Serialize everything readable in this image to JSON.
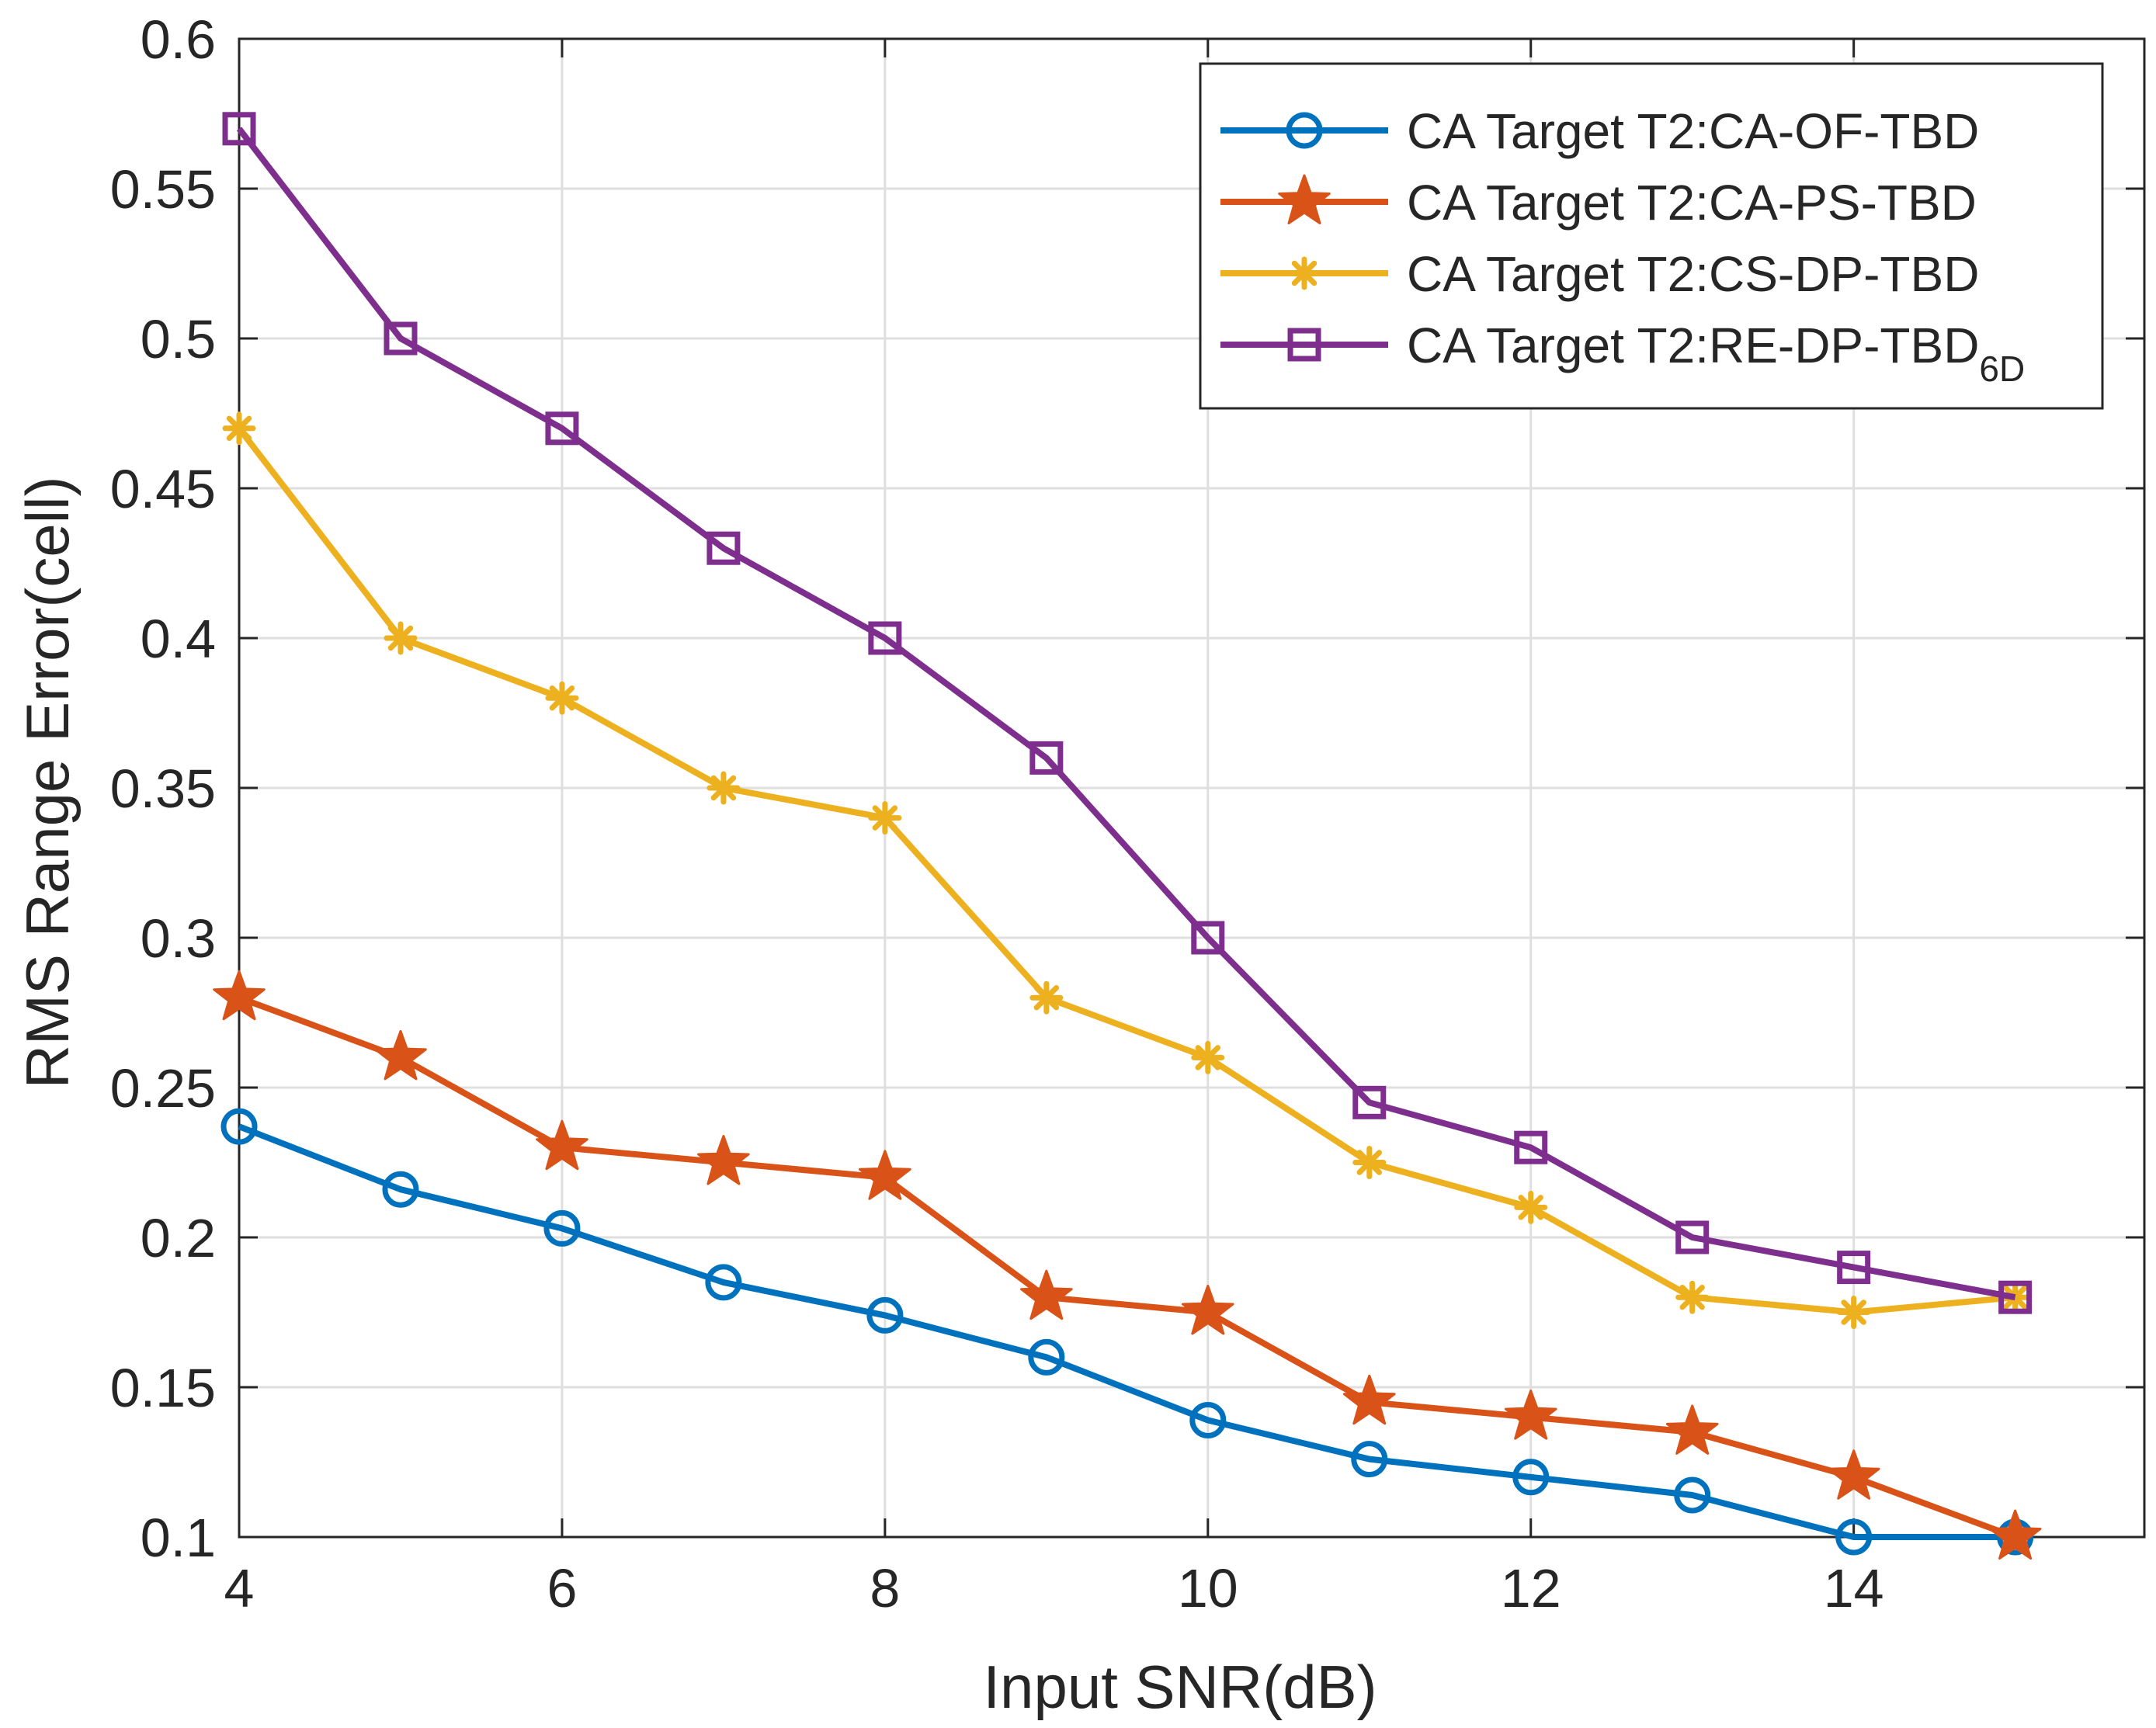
{
  "chart_data": {
    "type": "line",
    "title": "",
    "xlabel": "Input SNR(dB)",
    "ylabel": "RMS Range Error(cell)",
    "xlim": [
      4,
      15.8
    ],
    "ylim": [
      0.1,
      0.6
    ],
    "xticks": [
      4,
      6,
      8,
      10,
      12,
      14
    ],
    "xtick_labels": [
      "4",
      "6",
      "8",
      "10",
      "12",
      "14"
    ],
    "yticks": [
      0.1,
      0.15,
      0.2,
      0.25,
      0.3,
      0.35,
      0.4,
      0.45,
      0.5,
      0.55,
      0.6
    ],
    "ytick_labels": [
      "0.1",
      "0.15",
      "0.2",
      "0.25",
      "0.3",
      "0.35",
      "0.4",
      "0.45",
      "0.5",
      "0.55",
      "0.6"
    ],
    "grid": true,
    "legend_position": "top-right",
    "x": [
      4,
      5,
      6,
      7,
      8,
      9,
      10,
      11,
      12,
      13,
      14,
      15
    ],
    "series": [
      {
        "name": "CA Target T2:CA-OF-TBD",
        "name_sub": "",
        "color": "#0072BD",
        "marker": "circle",
        "values": [
          0.237,
          0.216,
          0.203,
          0.185,
          0.174,
          0.16,
          0.139,
          0.126,
          0.12,
          0.114,
          0.1,
          0.1
        ]
      },
      {
        "name": "CA Target T2:CA-PS-TBD",
        "name_sub": "",
        "color": "#D95319",
        "marker": "star",
        "values": [
          0.28,
          0.26,
          0.23,
          0.225,
          0.22,
          0.18,
          0.175,
          0.145,
          0.14,
          0.135,
          0.12,
          0.1
        ]
      },
      {
        "name": "CA Target T2:CS-DP-TBD",
        "name_sub": "",
        "color": "#EDB120",
        "marker": "asterisk",
        "values": [
          0.47,
          0.4,
          0.38,
          0.35,
          0.34,
          0.28,
          0.26,
          0.225,
          0.21,
          0.18,
          0.175,
          0.18
        ]
      },
      {
        "name": "CA Target T2:RE-DP-TBD",
        "name_sub": "6D",
        "color": "#7E2F8E",
        "marker": "square",
        "values": [
          0.57,
          0.5,
          0.47,
          0.43,
          0.4,
          0.36,
          0.3,
          0.245,
          0.23,
          0.2,
          0.19,
          0.18
        ]
      }
    ]
  }
}
